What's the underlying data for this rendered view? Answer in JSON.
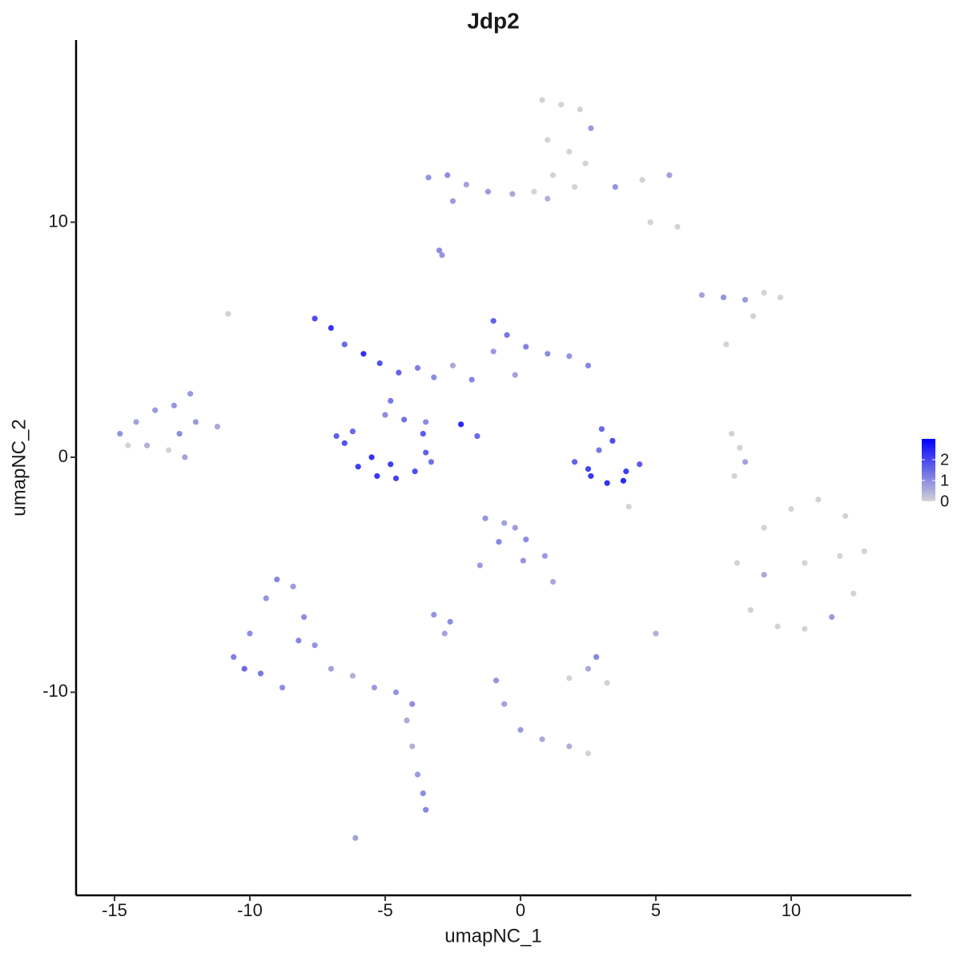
{
  "chart_data": {
    "type": "scatter",
    "title": "Jdp2",
    "xlabel": "umapNC_1",
    "ylabel": "umapNC_2",
    "xlim": [
      -16.42,
      14.44
    ],
    "ylim": [
      -18.64,
      17.75
    ],
    "xticks": [
      -15,
      -10,
      -5,
      0,
      5,
      10
    ],
    "yticks": [
      -10,
      0,
      10
    ],
    "color_low": "#d3d3d3",
    "color_high": "#0000ff",
    "colorlim": [
      0,
      3
    ],
    "colorticks": [
      0,
      1,
      2
    ],
    "legend": "right",
    "x": [
      0.8,
      1.5,
      2.2,
      2.6,
      1.0,
      1.8,
      2.4,
      1.2,
      2.0,
      3.5,
      4.5,
      5.5,
      4.8,
      5.8,
      -3.4,
      -2.7,
      -2.0,
      -1.2,
      -0.3,
      0.5,
      1.0,
      -2.5,
      -3.0,
      -2.9,
      6.7,
      7.5,
      8.3,
      9.0,
      9.6,
      8.6,
      -7.6,
      -7.0,
      -6.5,
      -5.8,
      -5.2,
      -4.5,
      -3.8,
      -3.2,
      -2.5,
      -1.8,
      -1.0,
      -0.5,
      0.2,
      1.0,
      1.8,
      2.5,
      -1.0,
      -0.2,
      -4.8,
      -3.5,
      -2.2,
      -1.6,
      -6.5,
      -6.0,
      -5.3,
      -4.6,
      -3.9,
      -3.5,
      -6.2,
      -4.3,
      -3.6,
      -5.5,
      -4.8,
      -6.8,
      -3.3,
      -5.0,
      -14.8,
      -14.2,
      -13.5,
      -12.8,
      -12.0,
      -11.2,
      -13.8,
      -13.0,
      -12.4,
      -12.2,
      -12.6,
      -14.5,
      2.0,
      2.6,
      3.2,
      3.8,
      4.4,
      3.0,
      3.4,
      2.9,
      3.9,
      2.5,
      8.0,
      9.0,
      10.0,
      11.0,
      12.0,
      12.7,
      8.5,
      9.5,
      10.5,
      11.5,
      12.3,
      9.0,
      10.5,
      11.8,
      -10.6,
      -10.0,
      -9.4,
      -9.0,
      -8.4,
      -8.0,
      -9.6,
      -8.8,
      -7.6,
      -7.0,
      -6.2,
      -5.4,
      -4.6,
      -4.0,
      -10.2,
      -8.2,
      -4.2,
      -4.0,
      -3.8,
      -3.6,
      -3.5,
      -6.1,
      -1.3,
      -0.6,
      0.2,
      0.9,
      1.2,
      -0.8,
      0.1,
      -0.2,
      -1.5,
      -3.2,
      -2.6,
      -2.8,
      1.8,
      2.5,
      3.2,
      2.8,
      -0.9,
      -0.6,
      0,
      0.8,
      1.8,
      2.5,
      7.8,
      8.1,
      8.3,
      7.9,
      -10.8,
      5.0,
      4.0,
      7.6
    ],
    "y": [
      15.2,
      15.0,
      14.8,
      14.0,
      13.5,
      13.0,
      12.5,
      12.0,
      11.5,
      11.5,
      11.8,
      12.0,
      10.0,
      9.8,
      11.9,
      12.0,
      11.6,
      11.3,
      11.2,
      11.3,
      11.0,
      10.9,
      8.8,
      8.6,
      6.9,
      6.8,
      6.7,
      7.0,
      6.8,
      6.0,
      5.9,
      5.5,
      4.8,
      4.4,
      4.0,
      3.6,
      3.8,
      3.4,
      3.9,
      3.3,
      5.8,
      5.2,
      4.7,
      4.4,
      4.3,
      3.9,
      4.5,
      3.5,
      2.4,
      1.5,
      1.4,
      0.9,
      0.6,
      -0.4,
      -0.8,
      -0.9,
      -0.6,
      0.2,
      1.1,
      1.6,
      1.0,
      0,
      -0.3,
      0.9,
      -0.2,
      1.8,
      1.0,
      1.5,
      2.0,
      2.2,
      1.5,
      1.3,
      0.5,
      0.3,
      0,
      2.7,
      1.0,
      0.5,
      -0.2,
      -0.8,
      -1.1,
      -1.0,
      -0.3,
      1.2,
      0.7,
      0.3,
      -0.6,
      -0.5,
      -4.5,
      -3.0,
      -2.2,
      -1.8,
      -2.5,
      -4.0,
      -6.5,
      -7.2,
      -7.3,
      -6.8,
      -5.8,
      -5.0,
      -4.5,
      -4.2,
      -8.5,
      -7.5,
      -6.0,
      -5.2,
      -5.5,
      -6.8,
      -9.2,
      -9.8,
      -8.0,
      -9.0,
      -9.3,
      -9.8,
      -10.0,
      -10.5,
      -9.0,
      -7.8,
      -11.2,
      -12.3,
      -13.5,
      -14.3,
      -15.0,
      -16.2,
      -2.6,
      -2.8,
      -3.5,
      -4.2,
      -5.3,
      -3.6,
      -4.4,
      -3.0,
      -4.6,
      -6.7,
      -7.0,
      -7.5,
      -9.4,
      -9.0,
      -9.6,
      -8.5,
      -9.5,
      -10.5,
      -11.6,
      -12.0,
      -12.3,
      -12.6,
      1.0,
      0.4,
      -0.2,
      -0.8,
      6.1,
      -7.5,
      -2.1,
      4.8
    ],
    "values": [
      0,
      0,
      0,
      0.8,
      0,
      0,
      0,
      0,
      0,
      0.9,
      0,
      0.7,
      0,
      0,
      0.9,
      1.0,
      0.7,
      0.8,
      0.6,
      0,
      0.5,
      0.8,
      1.0,
      0.9,
      0.7,
      0.9,
      0.8,
      0,
      0,
      0,
      1.9,
      2.2,
      1.5,
      2.3,
      1.8,
      1.6,
      1.2,
      1.0,
      0.6,
      1.1,
      1.6,
      1.3,
      1.2,
      1.0,
      0.9,
      1.1,
      0.8,
      0.7,
      1.3,
      1.0,
      2.4,
      1.5,
      1.8,
      2.1,
      2.2,
      2.0,
      1.9,
      1.6,
      1.5,
      1.4,
      1.7,
      2.3,
      2.1,
      1.6,
      1.4,
      1.0,
      0.9,
      0.7,
      0.8,
      0.9,
      0.8,
      0.6,
      0.5,
      0,
      0.7,
      0.8,
      1.0,
      0,
      1.6,
      2.2,
      2.3,
      2.4,
      1.7,
      1.5,
      1.9,
      1.3,
      2.1,
      2.0,
      0,
      0,
      0,
      0,
      0,
      0,
      0,
      0,
      0,
      0.8,
      0,
      0.6,
      0,
      0,
      1.2,
      1.0,
      0.9,
      1.1,
      0.8,
      1.0,
      1.3,
      1.0,
      0.9,
      0.7,
      0.5,
      0.8,
      0.9,
      1.0,
      1.5,
      1.1,
      0.6,
      0.5,
      0.8,
      1.0,
      1.1,
      0.7,
      0.9,
      0.7,
      1.0,
      0.8,
      0.6,
      1.1,
      0.9,
      0.8,
      0.8,
      0.9,
      1.0,
      0.7,
      0,
      0.6,
      0,
      1.1,
      0.9,
      0.7,
      0.8,
      0.6,
      0.5,
      0,
      0,
      0,
      0.7,
      0,
      0,
      0.5,
      0,
      0
    ]
  }
}
